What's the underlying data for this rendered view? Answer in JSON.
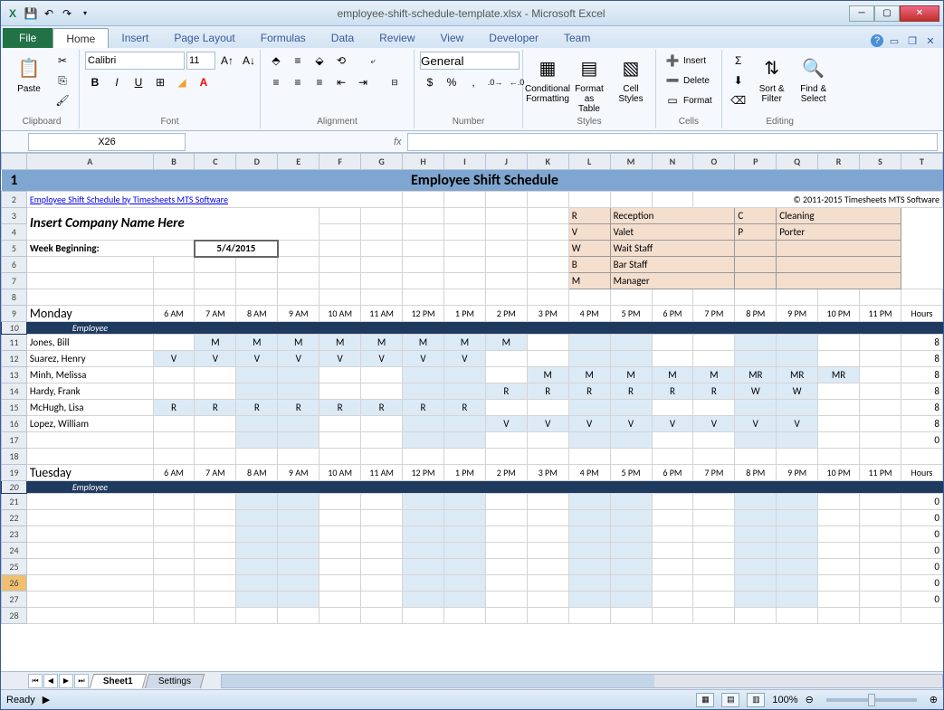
{
  "titlebar": {
    "title": "employee-shift-schedule-template.xlsx - Microsoft Excel",
    "qat_icons": [
      "excel",
      "save",
      "undo",
      "redo"
    ]
  },
  "ribbon": {
    "file_label": "File",
    "tabs": [
      "Home",
      "Insert",
      "Page Layout",
      "Formulas",
      "Data",
      "Review",
      "View",
      "Developer",
      "Team"
    ],
    "active_tab": "Home",
    "clipboard": {
      "paste": "Paste",
      "label": "Clipboard"
    },
    "font": {
      "name": "Calibri",
      "size": "11",
      "label": "Font"
    },
    "alignment": {
      "label": "Alignment"
    },
    "number": {
      "format": "General",
      "label": "Number"
    },
    "styles": {
      "cond": "Conditional\nFormatting",
      "table": "Format\nas Table",
      "cell": "Cell\nStyles",
      "label": "Styles"
    },
    "cells": {
      "insert": "Insert",
      "delete": "Delete",
      "format": "Format",
      "label": "Cells"
    },
    "editing": {
      "sort": "Sort &\nFilter",
      "find": "Find &\nSelect",
      "label": "Editing"
    }
  },
  "namebox": "X26",
  "formula": "",
  "columns": [
    "A",
    "B",
    "C",
    "D",
    "E",
    "F",
    "G",
    "H",
    "I",
    "J",
    "K",
    "L",
    "M",
    "N",
    "O",
    "P",
    "Q",
    "R",
    "S",
    "T"
  ],
  "col_widths": {
    "A": 140,
    "default": 46,
    "T": 46
  },
  "content": {
    "title": "Employee Shift Schedule",
    "link_text": "Employee Shift Schedule by Timesheets MTS Software",
    "copyright": "© 2011-2015 Timesheets MTS Software",
    "company": "Insert Company Name Here",
    "week_label": "Week Beginning:",
    "week_date": "5/4/2015",
    "legend": [
      {
        "code": "R",
        "label": "Reception"
      },
      {
        "code": "V",
        "label": "Valet"
      },
      {
        "code": "W",
        "label": "Wait Staff"
      },
      {
        "code": "B",
        "label": "Bar Staff"
      },
      {
        "code": "M",
        "label": "Manager"
      },
      {
        "code": "C",
        "label": "Cleaning"
      },
      {
        "code": "P",
        "label": "Porter"
      }
    ],
    "time_headers": [
      "6 AM",
      "7 AM",
      "8 AM",
      "9 AM",
      "10 AM",
      "11 AM",
      "12 PM",
      "1 PM",
      "2 PM",
      "3 PM",
      "4 PM",
      "5 PM",
      "6 PM",
      "7 PM",
      "8 PM",
      "9 PM",
      "10 PM",
      "11 PM",
      "Hours"
    ],
    "monday": {
      "label": "Monday",
      "emp_label": "Employee",
      "rows": [
        {
          "name": "Jones, Bill",
          "cells": [
            "",
            "M",
            "M",
            "M",
            "M",
            "M",
            "M",
            "M",
            "M",
            "",
            "",
            "",
            "",
            "",
            "",
            "",
            "",
            ""
          ],
          "hours": 8
        },
        {
          "name": "Suarez, Henry",
          "cells": [
            "V",
            "V",
            "V",
            "V",
            "V",
            "V",
            "V",
            "V",
            "",
            "",
            "",
            "",
            "",
            "",
            "",
            "",
            "",
            ""
          ],
          "hours": 8
        },
        {
          "name": "Minh, Melissa",
          "cells": [
            "",
            "",
            "",
            "",
            "",
            "",
            "",
            "",
            "",
            "M",
            "M",
            "M",
            "M",
            "M",
            "MR",
            "MR",
            "MR",
            ""
          ],
          "hours": 8
        },
        {
          "name": "Hardy, Frank",
          "cells": [
            "",
            "",
            "",
            "",
            "",
            "",
            "",
            "",
            "R",
            "R",
            "R",
            "R",
            "R",
            "R",
            "W",
            "W",
            "",
            ""
          ],
          "hours": 8
        },
        {
          "name": "McHugh, Lisa",
          "cells": [
            "R",
            "R",
            "R",
            "R",
            "R",
            "R",
            "R",
            "R",
            "",
            "",
            "",
            "",
            "",
            "",
            "",
            "",
            "",
            ""
          ],
          "hours": 8
        },
        {
          "name": "Lopez, William",
          "cells": [
            "",
            "",
            "",
            "",
            "",
            "",
            "",
            "",
            "V",
            "V",
            "V",
            "V",
            "V",
            "V",
            "V",
            "V",
            "",
            ""
          ],
          "hours": 8
        }
      ]
    },
    "tuesday": {
      "label": "Tuesday",
      "emp_label": "Employee",
      "rows": [
        {
          "name": "",
          "cells": [
            "",
            "",
            "",
            "",
            "",
            "",
            "",
            "",
            "",
            "",
            "",
            "",
            "",
            "",
            "",
            "",
            "",
            ""
          ],
          "hours": 0
        },
        {
          "name": "",
          "cells": [
            "",
            "",
            "",
            "",
            "",
            "",
            "",
            "",
            "",
            "",
            "",
            "",
            "",
            "",
            "",
            "",
            "",
            ""
          ],
          "hours": 0
        },
        {
          "name": "",
          "cells": [
            "",
            "",
            "",
            "",
            "",
            "",
            "",
            "",
            "",
            "",
            "",
            "",
            "",
            "",
            "",
            "",
            "",
            ""
          ],
          "hours": 0
        },
        {
          "name": "",
          "cells": [
            "",
            "",
            "",
            "",
            "",
            "",
            "",
            "",
            "",
            "",
            "",
            "",
            "",
            "",
            "",
            "",
            "",
            ""
          ],
          "hours": 0
        },
        {
          "name": "",
          "cells": [
            "",
            "",
            "",
            "",
            "",
            "",
            "",
            "",
            "",
            "",
            "",
            "",
            "",
            "",
            "",
            "",
            "",
            ""
          ],
          "hours": 0
        },
        {
          "name": "",
          "cells": [
            "",
            "",
            "",
            "",
            "",
            "",
            "",
            "",
            "",
            "",
            "",
            "",
            "",
            "",
            "",
            "",
            "",
            ""
          ],
          "hours": 0
        },
        {
          "name": "",
          "cells": [
            "",
            "",
            "",
            "",
            "",
            "",
            "",
            "",
            "",
            "",
            "",
            "",
            "",
            "",
            "",
            "",
            "",
            ""
          ],
          "hours": 0
        }
      ]
    }
  },
  "sheet_tabs": [
    "Sheet1",
    "Settings"
  ],
  "statusbar": {
    "ready": "Ready",
    "zoom": "100%"
  },
  "colors": {
    "title_bg": "#7fa6d0",
    "day_header_bg": "#1e3a5f",
    "shift_bg": "#dceaf6",
    "legend_bg": "#f4dece"
  }
}
